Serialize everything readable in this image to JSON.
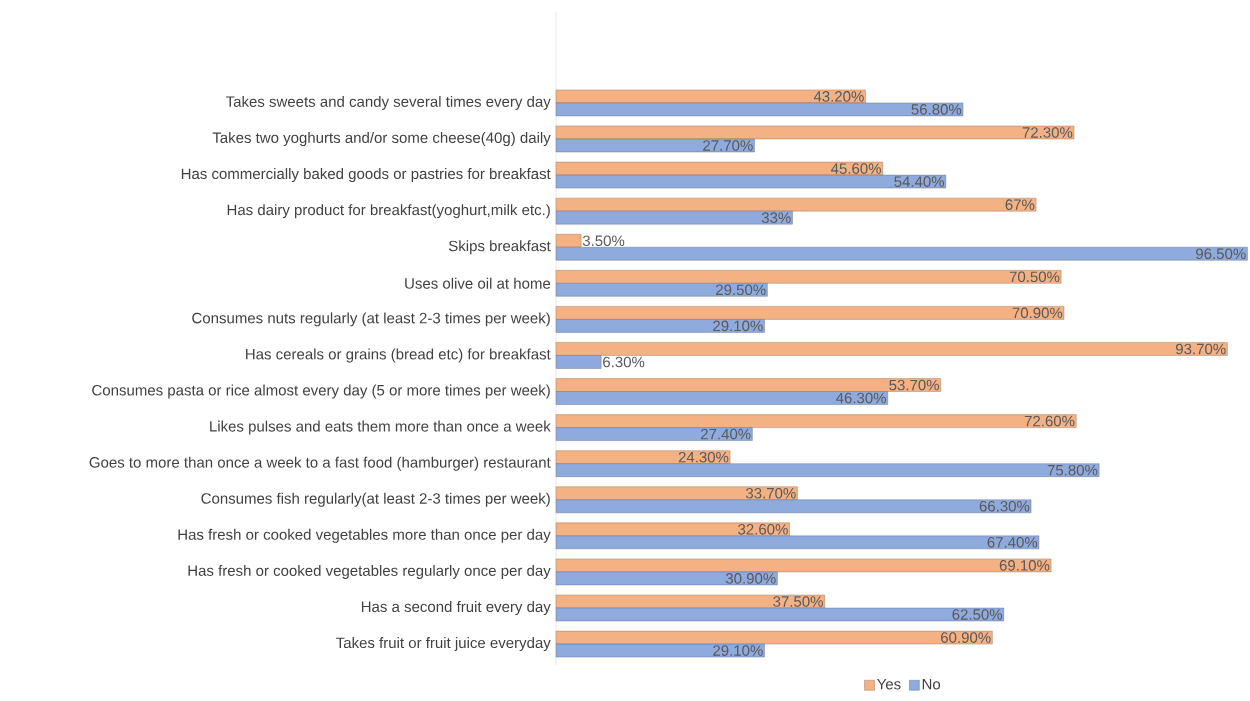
{
  "chart_data": {
    "type": "bar",
    "orientation": "horizontal",
    "legend": "bottom",
    "tick_labels": "y",
    "xlim": [
      0,
      97
    ],
    "categories": [
      "Takes sweets and candy several times every day",
      "Takes two yoghurts and/or some cheese(40g) daily",
      "Has commercially baked goods or pastries for breakfast",
      "Has dairy product for breakfast(yoghurt,milk etc.)",
      "Skips breakfast",
      "Uses olive oil at home",
      "Consumes nuts regularly (at least 2-3 times per week)",
      "Has cereals or grains (bread etc) for breakfast",
      "Consumes pasta or rice almost every day (5 or more times per week)",
      "Likes pulses and eats them more than once a week",
      "Goes to more than once a week to a fast food (hamburger) restaurant",
      "Consumes fish regularly(at least 2-3 times per week)",
      "Has fresh or cooked vegetables more than once per day",
      "Has fresh or cooked vegetables regularly once per day",
      "Has a second fruit every day",
      "Takes fruit or fruit juice everyday"
    ],
    "series": [
      {
        "name": "Yes",
        "color": "#f4b183",
        "values": [
          43.2,
          72.3,
          45.6,
          67,
          3.5,
          70.5,
          70.9,
          93.7,
          53.7,
          72.6,
          24.3,
          33.7,
          32.6,
          69.1,
          37.5,
          60.9
        ],
        "value_labels": [
          "43.20%",
          "72.30%",
          "45.60%",
          "67%",
          "3.50%",
          "70.50%",
          "70.90%",
          "93.70%",
          "53.70%",
          "72.60%",
          "24.30%",
          "33.70%",
          "32.60%",
          "69.10%",
          "37.50%",
          "60.90%"
        ]
      },
      {
        "name": "No",
        "color": "#8faadc",
        "values": [
          56.8,
          27.7,
          54.4,
          33,
          96.5,
          29.5,
          29.1,
          6.3,
          46.3,
          27.4,
          75.8,
          66.3,
          67.4,
          30.9,
          62.5,
          29.1
        ],
        "value_labels": [
          "56.80%",
          "27.70%",
          "54.40%",
          "33%",
          "96.50%",
          "29.50%",
          "29.10%",
          "6.30%",
          "46.30%",
          "27.40%",
          "75.80%",
          "66.30%",
          "67.40%",
          "30.90%",
          "62.50%",
          "29.10%"
        ]
      }
    ]
  }
}
